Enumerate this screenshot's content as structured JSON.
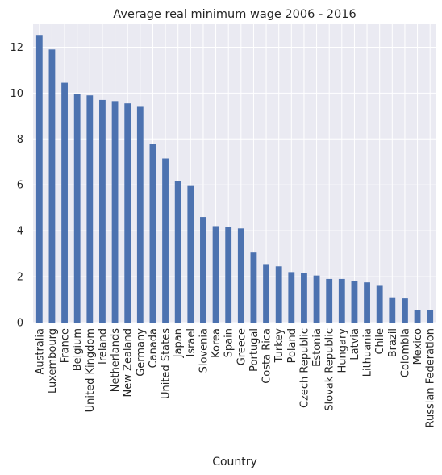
{
  "chart_data": {
    "type": "bar",
    "title": "Average real minimum wage 2006 - 2016",
    "xlabel": "Country",
    "ylabel": "",
    "ylim": [
      0,
      13
    ],
    "yticks": [
      0,
      2,
      4,
      6,
      8,
      10,
      12
    ],
    "grid": true,
    "legend": "none",
    "colors": {
      "bar": "#4c72b0",
      "plot_bg": "#eaeaf2",
      "grid": "#ffffff",
      "text": "#262626"
    },
    "categories": [
      "Australia",
      "Luxembourg",
      "France",
      "Belgium",
      "United Kingdom",
      "Ireland",
      "Netherlands",
      "New Zealand",
      "Germany",
      "Canada",
      "United States",
      "Japan",
      "Israel",
      "Slovenia",
      "Korea",
      "Spain",
      "Greece",
      "Portugal",
      "Costa Rica",
      "Turkey",
      "Poland",
      "Czech Republic",
      "Estonia",
      "Slovak Republic",
      "Hungary",
      "Latvia",
      "Lithuania",
      "Chile",
      "Brazil",
      "Colombia",
      "Mexico",
      "Russian Federation"
    ],
    "values": [
      12.5,
      11.9,
      10.45,
      9.95,
      9.9,
      9.7,
      9.65,
      9.55,
      9.4,
      7.8,
      7.15,
      6.15,
      5.95,
      4.6,
      4.2,
      4.15,
      4.1,
      3.05,
      2.55,
      2.45,
      2.2,
      2.15,
      2.05,
      1.9,
      1.9,
      1.8,
      1.75,
      1.6,
      1.1,
      1.05,
      0.55,
      0.55
    ]
  }
}
